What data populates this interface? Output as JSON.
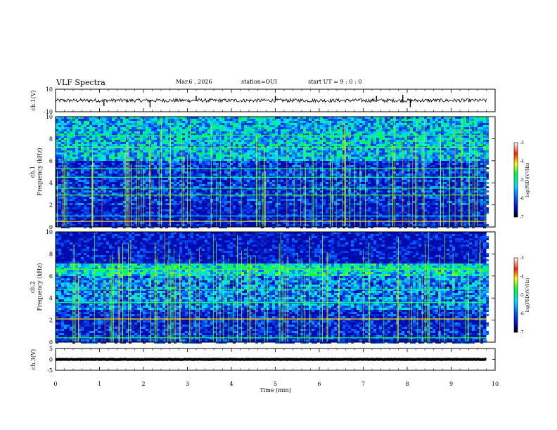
{
  "header": {
    "title": "VLF Spectra",
    "date": "Mar.6 , 2026",
    "station": "station=OUI",
    "start_time": "start UT = 9 : 0 : 0"
  },
  "chart_data": [
    {
      "type": "line",
      "name": "ch1-waveform",
      "ylabel": "ch.1(V)",
      "ylim": [
        -10,
        10
      ],
      "tick_labels": [
        "10",
        "-10"
      ],
      "baseline": 0,
      "noise_amplitude": 1.6,
      "spikes": [
        {
          "t": 1.1,
          "v": -5
        },
        {
          "t": 2.15,
          "v": -6
        },
        {
          "t": 3.2,
          "v": 4
        },
        {
          "t": 5.0,
          "v": 4
        },
        {
          "t": 7.3,
          "v": 4
        },
        {
          "t": 7.9,
          "v": 5
        },
        {
          "t": 8.07,
          "v": -6
        }
      ]
    },
    {
      "type": "heatmap",
      "name": "ch1-spectrogram",
      "ylabel": "ch.1\nFrequency (kHz)",
      "ylim": [
        0,
        10
      ],
      "yticks": [
        0,
        2,
        4,
        6,
        8,
        10
      ],
      "colorbar": {
        "label": "log(PSD)(V²/Hz)",
        "range": [
          -7,
          -3
        ],
        "ticks": [
          -3,
          -4,
          -5,
          -6,
          -7
        ]
      },
      "data_end_min": 9.8,
      "bands_khz": [
        {
          "from": 6.0,
          "to": 10.0,
          "level": -5.5
        },
        {
          "from": 2.0,
          "to": 6.0,
          "level": -6.3
        },
        {
          "from": 0.0,
          "to": 2.0,
          "level": -6.6
        }
      ],
      "lines_khz": [
        {
          "f": 0.5,
          "level": -4.0
        },
        {
          "f": 1.0,
          "level": -5.2
        },
        {
          "f": 2.9,
          "level": -4.6
        },
        {
          "f": 3.5,
          "level": -4.8
        },
        {
          "f": 4.5,
          "level": -5.0
        },
        {
          "f": 5.3,
          "level": -4.9
        },
        {
          "f": 7.2,
          "level": -4.5
        },
        {
          "f": 8.3,
          "level": -4.7
        }
      ]
    },
    {
      "type": "heatmap",
      "name": "ch2-spectrogram",
      "ylabel": "ch.2\nFrequency (kHz)",
      "ylim": [
        0,
        10
      ],
      "yticks": [
        0,
        2,
        4,
        6,
        8,
        10
      ],
      "colorbar": {
        "label": "log(PSD)(V²/Hz)",
        "range": [
          -7,
          -3
        ],
        "ticks": [
          -3,
          -4,
          -5,
          -6,
          -7
        ]
      },
      "data_end_min": 9.8,
      "bands_khz": [
        {
          "from": 6.0,
          "to": 7.2,
          "level": -5.2
        },
        {
          "from": 3.0,
          "to": 6.0,
          "level": -5.8
        },
        {
          "from": 0.0,
          "to": 3.0,
          "level": -6.4
        }
      ],
      "lines_khz": [
        {
          "f": 0.4,
          "level": -4.8
        },
        {
          "f": 2.1,
          "level": -4.0
        },
        {
          "f": 3.6,
          "level": -4.9
        },
        {
          "f": 4.8,
          "level": -5.0
        },
        {
          "f": 6.6,
          "level": -4.6
        }
      ]
    },
    {
      "type": "line",
      "name": "ch3-waveform",
      "ylabel": "ch.3(V)",
      "ylim": [
        -5,
        5
      ],
      "tick_labels": [
        "5",
        "0",
        "-5"
      ],
      "baseline": 0,
      "noise_amplitude": 0.1,
      "spikes": []
    }
  ],
  "xaxis": {
    "label": "Time (min)",
    "range": [
      0,
      10
    ],
    "ticks": [
      "0",
      "1",
      "2",
      "3",
      "4",
      "5",
      "6",
      "7",
      "8",
      "9",
      "10"
    ]
  },
  "colors": {
    "background": "#ffffff",
    "axis": "#000000"
  }
}
